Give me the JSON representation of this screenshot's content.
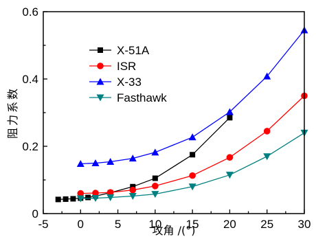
{
  "chart_data": {
    "type": "line",
    "title": "",
    "xlabel": "攻角 /(°)",
    "ylabel": "阻力系数",
    "xlim": [
      -5,
      30
    ],
    "ylim": [
      0,
      0.6
    ],
    "xticks": [
      -5,
      0,
      5,
      10,
      15,
      20,
      25,
      30
    ],
    "yticks": [
      0,
      0.2,
      0.4,
      0.6
    ],
    "xtick_labels": [
      "-5",
      "0",
      "5",
      "10",
      "15",
      "20",
      "25",
      "30"
    ],
    "ytick_labels": [
      "0",
      "0.2",
      "0.4",
      "0.6"
    ],
    "grid": false,
    "legend_position": "top-left",
    "series": [
      {
        "name": "X-51A",
        "color": "#000000",
        "marker": "square",
        "x": [
          -3,
          -2,
          -1,
          0,
          1,
          2,
          4,
          7,
          10,
          15,
          20
        ],
        "y": [
          0.042,
          0.043,
          0.044,
          0.046,
          0.048,
          0.052,
          0.062,
          0.08,
          0.105,
          0.175,
          0.285
        ]
      },
      {
        "name": "ISR",
        "color": "#ff0000",
        "marker": "circle",
        "x": [
          0,
          2,
          4,
          7,
          10,
          15,
          20,
          25,
          30
        ],
        "y": [
          0.06,
          0.061,
          0.063,
          0.07,
          0.082,
          0.113,
          0.167,
          0.245,
          0.35
        ]
      },
      {
        "name": "X-33",
        "color": "#0000ff",
        "marker": "triangle-up",
        "x": [
          0,
          2,
          4,
          7,
          10,
          15,
          20,
          25,
          30
        ],
        "y": [
          0.148,
          0.15,
          0.154,
          0.164,
          0.182,
          0.227,
          0.302,
          0.408,
          0.545
        ]
      },
      {
        "name": "Fasthawk",
        "color": "#008080",
        "marker": "triangle-down",
        "x": [
          0,
          2,
          4,
          7,
          10,
          15,
          20,
          25,
          30
        ],
        "y": [
          0.045,
          0.046,
          0.048,
          0.052,
          0.058,
          0.08,
          0.115,
          0.17,
          0.24
        ]
      }
    ]
  }
}
